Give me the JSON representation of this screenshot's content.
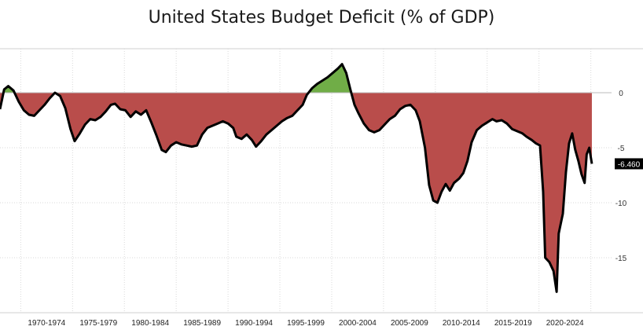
{
  "chart_data": {
    "type": "area",
    "title": "United States Budget Deficit (% of GDP)",
    "xlabel": "",
    "ylabel": "",
    "xlim": [
      1967.5,
      2026.5
    ],
    "ylim": [
      -20,
      4
    ],
    "yticks": [
      0,
      -5,
      -10,
      -15
    ],
    "ytick_labels": [
      "0",
      "-5",
      "-10",
      "-15"
    ],
    "x_tick_labels": [
      "1970-1974",
      "1975-1979",
      "1980-1984",
      "1985-1989",
      "1990-1994",
      "1995-1999",
      "2000-2004",
      "2005-2009",
      "2010-2014",
      "2015-2019",
      "2020-2024"
    ],
    "x_tick_centers": [
      1972,
      1977,
      1982,
      1987,
      1992,
      1997,
      2002,
      2007,
      2012,
      2017,
      2022
    ],
    "grid": true,
    "colors": {
      "surplus": "#70ad47",
      "deficit": "#b94d4b",
      "line": "#000000",
      "last_label_bg": "#000000"
    },
    "last_value_label": "-6.460",
    "series": [
      {
        "points": [
          [
            1967.5,
            -1.5
          ],
          [
            1967.9,
            0.3
          ],
          [
            1968.3,
            0.6
          ],
          [
            1968.8,
            0.2
          ],
          [
            1969.3,
            -0.8
          ],
          [
            1969.8,
            -1.6
          ],
          [
            1970.3,
            -2.0
          ],
          [
            1970.8,
            -2.1
          ],
          [
            1971.3,
            -1.6
          ],
          [
            1971.8,
            -1.1
          ],
          [
            1972.3,
            -0.5
          ],
          [
            1972.8,
            0.0
          ],
          [
            1973.3,
            -0.3
          ],
          [
            1973.8,
            -1.4
          ],
          [
            1974.3,
            -3.3
          ],
          [
            1974.7,
            -4.4
          ],
          [
            1975.2,
            -3.7
          ],
          [
            1975.7,
            -2.9
          ],
          [
            1976.2,
            -2.4
          ],
          [
            1976.7,
            -2.5
          ],
          [
            1977.2,
            -2.2
          ],
          [
            1977.7,
            -1.7
          ],
          [
            1978.2,
            -1.1
          ],
          [
            1978.6,
            -1.0
          ],
          [
            1979.1,
            -1.5
          ],
          [
            1979.6,
            -1.6
          ],
          [
            1980.1,
            -2.2
          ],
          [
            1980.6,
            -1.7
          ],
          [
            1981.1,
            -2.0
          ],
          [
            1981.6,
            -1.6
          ],
          [
            1982.1,
            -2.7
          ],
          [
            1982.6,
            -3.9
          ],
          [
            1983.1,
            -5.2
          ],
          [
            1983.5,
            -5.4
          ],
          [
            1984.0,
            -4.8
          ],
          [
            1984.5,
            -4.5
          ],
          [
            1985.0,
            -4.7
          ],
          [
            1985.5,
            -4.8
          ],
          [
            1986.0,
            -4.9
          ],
          [
            1986.5,
            -4.8
          ],
          [
            1987.0,
            -3.8
          ],
          [
            1987.5,
            -3.2
          ],
          [
            1988.0,
            -3.0
          ],
          [
            1988.5,
            -2.8
          ],
          [
            1989.0,
            -2.6
          ],
          [
            1989.5,
            -2.8
          ],
          [
            1990.0,
            -3.2
          ],
          [
            1990.3,
            -4.0
          ],
          [
            1990.8,
            -4.2
          ],
          [
            1991.3,
            -3.8
          ],
          [
            1991.8,
            -4.3
          ],
          [
            1992.2,
            -4.9
          ],
          [
            1992.7,
            -4.4
          ],
          [
            1993.2,
            -3.8
          ],
          [
            1993.7,
            -3.4
          ],
          [
            1994.2,
            -3.0
          ],
          [
            1994.7,
            -2.6
          ],
          [
            1995.2,
            -2.3
          ],
          [
            1995.7,
            -2.1
          ],
          [
            1996.2,
            -1.6
          ],
          [
            1996.7,
            -1.1
          ],
          [
            1997.1,
            -0.2
          ],
          [
            1997.6,
            0.4
          ],
          [
            1998.1,
            0.8
          ],
          [
            1998.6,
            1.1
          ],
          [
            1999.1,
            1.4
          ],
          [
            1999.6,
            1.8
          ],
          [
            2000.1,
            2.2
          ],
          [
            2000.5,
            2.6
          ],
          [
            2000.9,
            1.8
          ],
          [
            2001.3,
            0.3
          ],
          [
            2001.7,
            -1.1
          ],
          [
            2002.1,
            -1.9
          ],
          [
            2002.6,
            -2.8
          ],
          [
            2003.1,
            -3.4
          ],
          [
            2003.6,
            -3.6
          ],
          [
            2004.1,
            -3.4
          ],
          [
            2004.6,
            -2.9
          ],
          [
            2005.1,
            -2.4
          ],
          [
            2005.6,
            -2.1
          ],
          [
            2006.1,
            -1.5
          ],
          [
            2006.6,
            -1.2
          ],
          [
            2007.1,
            -1.1
          ],
          [
            2007.6,
            -1.6
          ],
          [
            2008.0,
            -2.6
          ],
          [
            2008.5,
            -5.0
          ],
          [
            2008.9,
            -8.4
          ],
          [
            2009.3,
            -9.8
          ],
          [
            2009.7,
            -10.0
          ],
          [
            2010.1,
            -9.0
          ],
          [
            2010.5,
            -8.3
          ],
          [
            2010.9,
            -8.9
          ],
          [
            2011.3,
            -8.2
          ],
          [
            2011.8,
            -7.8
          ],
          [
            2012.2,
            -7.3
          ],
          [
            2012.6,
            -6.2
          ],
          [
            2013.0,
            -4.5
          ],
          [
            2013.5,
            -3.4
          ],
          [
            2014.0,
            -3.0
          ],
          [
            2014.5,
            -2.7
          ],
          [
            2015.0,
            -2.4
          ],
          [
            2015.4,
            -2.6
          ],
          [
            2015.9,
            -2.5
          ],
          [
            2016.4,
            -2.8
          ],
          [
            2016.9,
            -3.3
          ],
          [
            2017.4,
            -3.5
          ],
          [
            2017.9,
            -3.7
          ],
          [
            2018.3,
            -4.0
          ],
          [
            2018.8,
            -4.3
          ],
          [
            2019.2,
            -4.6
          ],
          [
            2019.6,
            -4.8
          ],
          [
            2019.9,
            -9.0
          ],
          [
            2020.1,
            -15.0
          ],
          [
            2020.5,
            -15.4
          ],
          [
            2020.9,
            -16.2
          ],
          [
            2021.2,
            -18.1
          ],
          [
            2021.4,
            -12.8
          ],
          [
            2021.8,
            -11.0
          ],
          [
            2022.1,
            -7.2
          ],
          [
            2022.4,
            -4.6
          ],
          [
            2022.7,
            -3.7
          ],
          [
            2023.0,
            -5.2
          ],
          [
            2023.3,
            -6.2
          ],
          [
            2023.6,
            -7.4
          ],
          [
            2023.9,
            -8.2
          ],
          [
            2024.1,
            -5.6
          ],
          [
            2024.35,
            -5.0
          ],
          [
            2024.6,
            -6.46
          ]
        ]
      }
    ]
  }
}
